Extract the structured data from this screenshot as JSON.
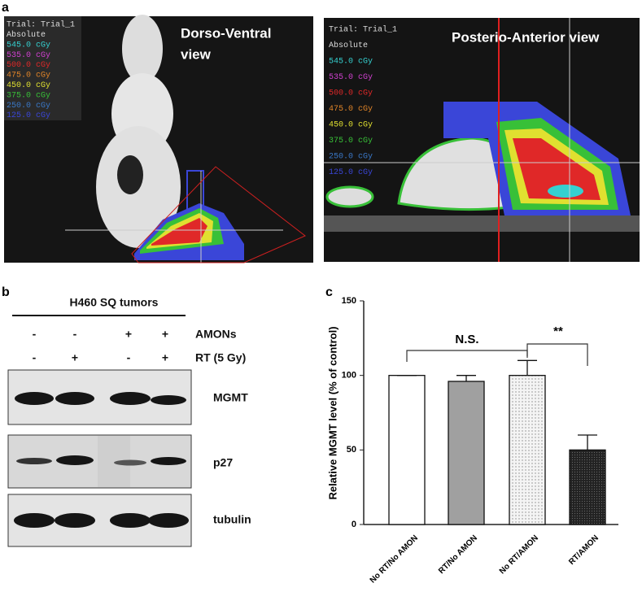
{
  "panel_labels": [
    "a",
    "b",
    "c"
  ],
  "dose_maps": [
    {
      "title_lines": [
        "Dorso-Ventral",
        "view"
      ],
      "header": [
        "Trial: Trial_1",
        "Absolute"
      ],
      "doses": [
        {
          "label": "545.0 cGy",
          "color": "#35d0d0"
        },
        {
          "label": "535.0 cGy",
          "color": "#d040d0"
        },
        {
          "label": "500.0 cGy",
          "color": "#e02828"
        },
        {
          "label": "475.0 cGy",
          "color": "#e08428"
        },
        {
          "label": "450.0 cGy",
          "color": "#e0e030"
        },
        {
          "label": "375.0 cGy",
          "color": "#38c038"
        },
        {
          "label": "250.0 cGy",
          "color": "#3a78c8"
        },
        {
          "label": "125.0 cGy",
          "color": "#3a46d8"
        }
      ]
    },
    {
      "title_lines": [
        "Posterio-Anterior view"
      ],
      "header": [
        "Trial: Trial_1",
        "Absolute"
      ],
      "doses": [
        {
          "label": "545.0 cGy",
          "color": "#35d0d0"
        },
        {
          "label": "535.0 cGy",
          "color": "#d040d0"
        },
        {
          "label": "500.0 cGy",
          "color": "#e02828"
        },
        {
          "label": "475.0 cGy",
          "color": "#e08428"
        },
        {
          "label": "450.0 cGy",
          "color": "#e0e030"
        },
        {
          "label": "375.0 cGy",
          "color": "#38c038"
        },
        {
          "label": "250.0 cGy",
          "color": "#3a78c8"
        },
        {
          "label": "125.0 cGy",
          "color": "#3a46d8"
        }
      ]
    }
  ],
  "blot": {
    "title": "H460 SQ tumors",
    "conditions": [
      {
        "name": "AMONs",
        "signs": [
          "-",
          "-",
          "+",
          "+"
        ]
      },
      {
        "name": "RT (5 Gy)",
        "signs": [
          "-",
          "+",
          "-",
          "+"
        ]
      }
    ],
    "bands": [
      "MGMT",
      "p27",
      "tubulin"
    ]
  },
  "chart_data": {
    "type": "bar",
    "y_label": "Relative MGMT level (% of control)",
    "categories": [
      "No RT/No AMON",
      "RT/No AMON",
      "No RT/AMON",
      "RT/AMON"
    ],
    "values": [
      100,
      96,
      100,
      50
    ],
    "errors": [
      0,
      4,
      10,
      10
    ],
    "colors": [
      "#ffffff",
      "#a0a0a0",
      "#ececec",
      "#222222"
    ],
    "ylim": [
      0,
      150
    ],
    "yticks": [
      0,
      50,
      100,
      150
    ],
    "annotations": [
      "N.S.",
      "**"
    ]
  }
}
